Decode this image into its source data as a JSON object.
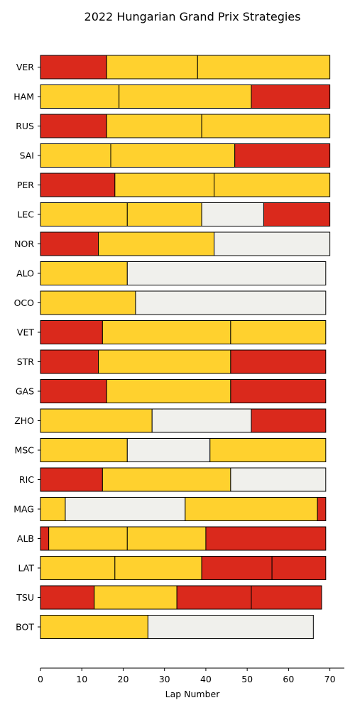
{
  "chart_data": {
    "type": "bar",
    "orientation": "horizontal-stacked",
    "title": "2022 Hungarian Grand Prix Strategies",
    "xlabel": "Lap Number",
    "ylabel": "",
    "xlim": [
      0,
      73.5
    ],
    "xticks": [
      0,
      10,
      20,
      30,
      40,
      50,
      60,
      70
    ],
    "grid": false,
    "legend": "none",
    "compound_colors": {
      "SOFT": "#DA291C",
      "MEDIUM": "#FFD12E",
      "HARD": "#F0F0EC"
    },
    "drivers": [
      {
        "driver": "VER",
        "stints": [
          {
            "compound": "SOFT",
            "laps": 16
          },
          {
            "compound": "MEDIUM",
            "laps": 22
          },
          {
            "compound": "MEDIUM",
            "laps": 32
          }
        ]
      },
      {
        "driver": "HAM",
        "stints": [
          {
            "compound": "MEDIUM",
            "laps": 19
          },
          {
            "compound": "MEDIUM",
            "laps": 32
          },
          {
            "compound": "SOFT",
            "laps": 19
          }
        ]
      },
      {
        "driver": "RUS",
        "stints": [
          {
            "compound": "SOFT",
            "laps": 16
          },
          {
            "compound": "MEDIUM",
            "laps": 23
          },
          {
            "compound": "MEDIUM",
            "laps": 31
          }
        ]
      },
      {
        "driver": "SAI",
        "stints": [
          {
            "compound": "MEDIUM",
            "laps": 17
          },
          {
            "compound": "MEDIUM",
            "laps": 30
          },
          {
            "compound": "SOFT",
            "laps": 23
          }
        ]
      },
      {
        "driver": "PER",
        "stints": [
          {
            "compound": "SOFT",
            "laps": 18
          },
          {
            "compound": "MEDIUM",
            "laps": 24
          },
          {
            "compound": "MEDIUM",
            "laps": 28
          }
        ]
      },
      {
        "driver": "LEC",
        "stints": [
          {
            "compound": "MEDIUM",
            "laps": 21
          },
          {
            "compound": "MEDIUM",
            "laps": 18
          },
          {
            "compound": "HARD",
            "laps": 15
          },
          {
            "compound": "SOFT",
            "laps": 16
          }
        ]
      },
      {
        "driver": "NOR",
        "stints": [
          {
            "compound": "SOFT",
            "laps": 14
          },
          {
            "compound": "MEDIUM",
            "laps": 28
          },
          {
            "compound": "HARD",
            "laps": 28
          }
        ]
      },
      {
        "driver": "ALO",
        "stints": [
          {
            "compound": "MEDIUM",
            "laps": 21
          },
          {
            "compound": "HARD",
            "laps": 48
          }
        ]
      },
      {
        "driver": "OCO",
        "stints": [
          {
            "compound": "MEDIUM",
            "laps": 23
          },
          {
            "compound": "HARD",
            "laps": 46
          }
        ]
      },
      {
        "driver": "VET",
        "stints": [
          {
            "compound": "SOFT",
            "laps": 15
          },
          {
            "compound": "MEDIUM",
            "laps": 31
          },
          {
            "compound": "MEDIUM",
            "laps": 23
          }
        ]
      },
      {
        "driver": "STR",
        "stints": [
          {
            "compound": "SOFT",
            "laps": 14
          },
          {
            "compound": "MEDIUM",
            "laps": 32
          },
          {
            "compound": "SOFT",
            "laps": 23
          }
        ]
      },
      {
        "driver": "GAS",
        "stints": [
          {
            "compound": "SOFT",
            "laps": 16
          },
          {
            "compound": "MEDIUM",
            "laps": 30
          },
          {
            "compound": "SOFT",
            "laps": 23
          }
        ]
      },
      {
        "driver": "ZHO",
        "stints": [
          {
            "compound": "MEDIUM",
            "laps": 27
          },
          {
            "compound": "HARD",
            "laps": 24
          },
          {
            "compound": "SOFT",
            "laps": 18
          }
        ]
      },
      {
        "driver": "MSC",
        "stints": [
          {
            "compound": "MEDIUM",
            "laps": 21
          },
          {
            "compound": "HARD",
            "laps": 20
          },
          {
            "compound": "MEDIUM",
            "laps": 28
          }
        ]
      },
      {
        "driver": "RIC",
        "stints": [
          {
            "compound": "SOFT",
            "laps": 15
          },
          {
            "compound": "MEDIUM",
            "laps": 31
          },
          {
            "compound": "HARD",
            "laps": 23
          }
        ]
      },
      {
        "driver": "MAG",
        "stints": [
          {
            "compound": "MEDIUM",
            "laps": 6
          },
          {
            "compound": "HARD",
            "laps": 29
          },
          {
            "compound": "MEDIUM",
            "laps": 32
          },
          {
            "compound": "SOFT",
            "laps": 2
          }
        ]
      },
      {
        "driver": "ALB",
        "stints": [
          {
            "compound": "SOFT",
            "laps": 2
          },
          {
            "compound": "MEDIUM",
            "laps": 19
          },
          {
            "compound": "MEDIUM",
            "laps": 19
          },
          {
            "compound": "SOFT",
            "laps": 29
          }
        ]
      },
      {
        "driver": "LAT",
        "stints": [
          {
            "compound": "MEDIUM",
            "laps": 18
          },
          {
            "compound": "MEDIUM",
            "laps": 21
          },
          {
            "compound": "SOFT",
            "laps": 17
          },
          {
            "compound": "SOFT",
            "laps": 13
          }
        ]
      },
      {
        "driver": "TSU",
        "stints": [
          {
            "compound": "SOFT",
            "laps": 13
          },
          {
            "compound": "MEDIUM",
            "laps": 20
          },
          {
            "compound": "SOFT",
            "laps": 18
          },
          {
            "compound": "SOFT",
            "laps": 17
          }
        ]
      },
      {
        "driver": "BOT",
        "stints": [
          {
            "compound": "MEDIUM",
            "laps": 26
          },
          {
            "compound": "HARD",
            "laps": 40
          }
        ]
      }
    ]
  }
}
